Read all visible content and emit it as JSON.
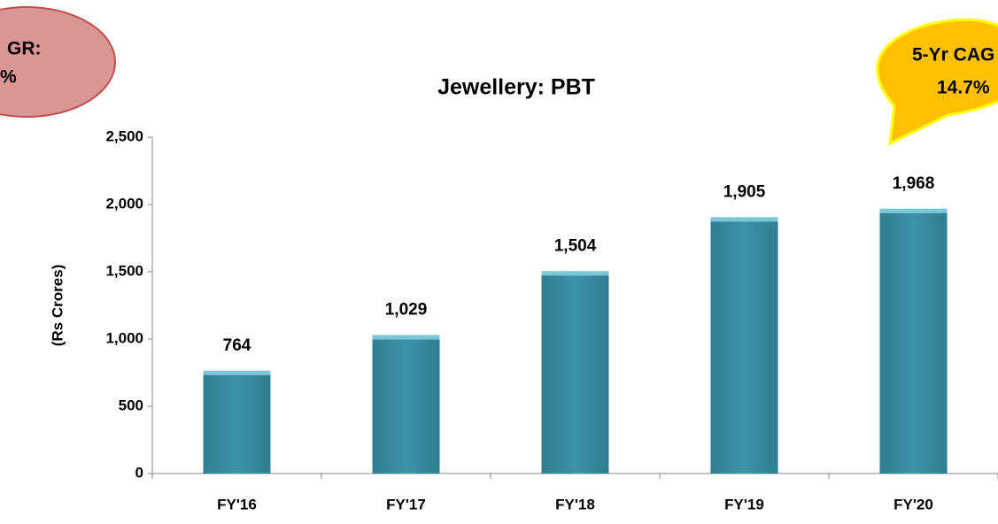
{
  "chart_data": {
    "type": "bar",
    "title": "Jewellery: PBT",
    "ylabel": "(Rs Crores)",
    "categories": [
      "FY'16",
      "FY'17",
      "FY'18",
      "FY'19",
      "FY'20"
    ],
    "values": [
      764,
      1029,
      1504,
      1905,
      1968
    ],
    "value_labels": [
      "764",
      "1,029",
      "1,504",
      "1,905",
      "1,968"
    ],
    "color": "#3a8ea4",
    "ylim": [
      0,
      2500
    ],
    "yticks": [
      0,
      500,
      {
        "value": 1000,
        "label": "1,000"
      },
      {
        "value": 1500,
        "label": "1,500"
      },
      {
        "value": 2000,
        "label": "2,000"
      },
      {
        "value": 2500,
        "label": "2,500"
      }
    ],
    "annotations": [
      {
        "lines": [
          "GR:",
          "%"
        ]
      },
      {
        "lines": [
          "5-Yr CAG",
          "14.7%"
        ]
      }
    ]
  }
}
